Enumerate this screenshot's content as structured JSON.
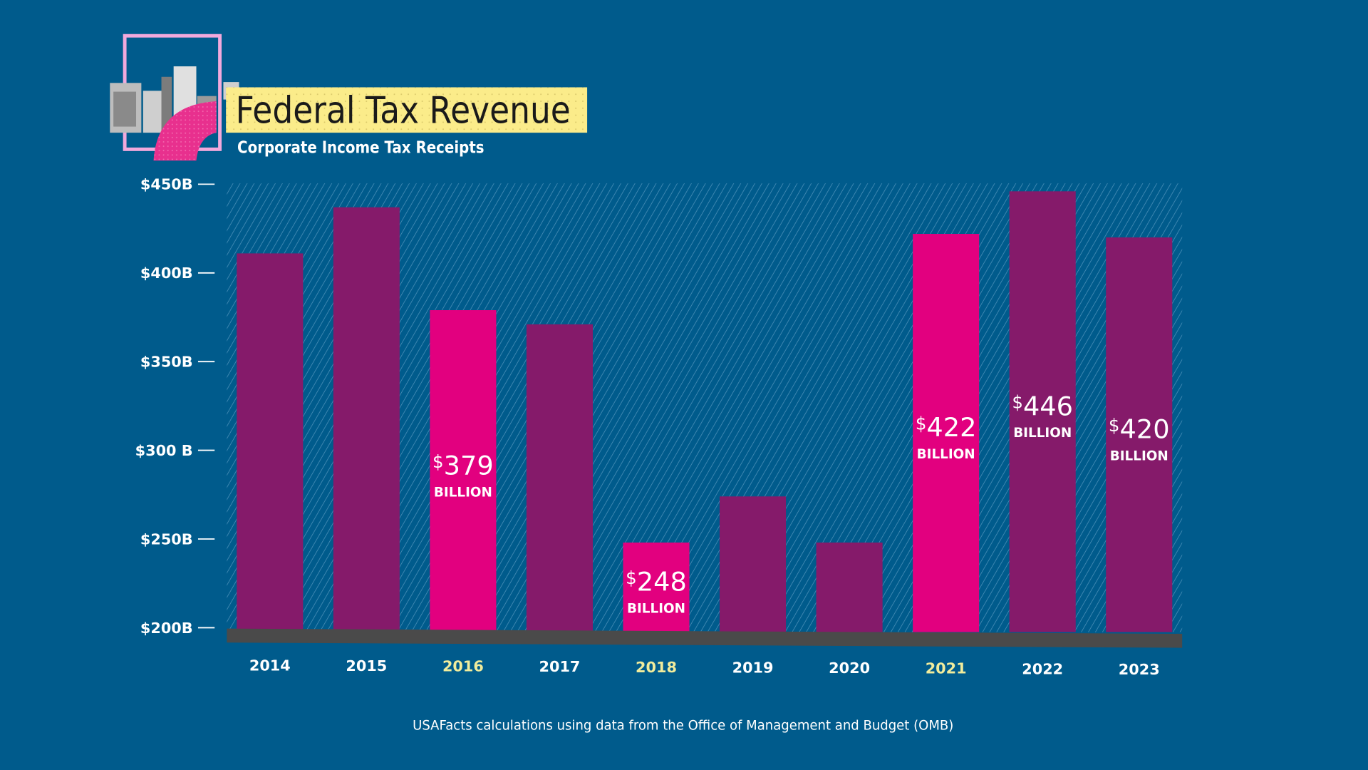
{
  "chart_data": {
    "type": "bar",
    "title": "Federal Tax Revenue",
    "subtitle": "Corporate Income Tax Receipts",
    "source": "USAFacts calculations using data from the Office of Management and Budget (OMB)",
    "categories": [
      "2014",
      "2015",
      "2016",
      "2017",
      "2018",
      "2019",
      "2020",
      "2021",
      "2022",
      "2023"
    ],
    "values": [
      411,
      437,
      379,
      371,
      248,
      274,
      248,
      422,
      446,
      420
    ],
    "highlighted": [
      false,
      false,
      true,
      false,
      true,
      false,
      false,
      true,
      false,
      false
    ],
    "data_labels": [
      null,
      null,
      {
        "amount": "379",
        "unit": "BILLION"
      },
      null,
      {
        "amount": "248",
        "unit": "BILLION"
      },
      null,
      null,
      {
        "amount": "422",
        "unit": "BILLION"
      },
      {
        "amount": "446",
        "unit": "BILLION"
      },
      {
        "amount": "420",
        "unit": "BILLION"
      }
    ],
    "currency_symbol": "$",
    "ylim": [
      200,
      450
    ],
    "yticks": [
      {
        "value": 450,
        "label": "$450B"
      },
      {
        "value": 400,
        "label": "$400B"
      },
      {
        "value": 350,
        "label": "$350B"
      },
      {
        "value": 300,
        "label": "$300 B"
      },
      {
        "value": 250,
        "label": "$250B"
      },
      {
        "value": 200,
        "label": "$200B"
      }
    ],
    "xlabel": "",
    "ylabel": "",
    "grid": false,
    "colors": {
      "background": "#005b8c",
      "bar": "#851a6a",
      "bar_highlight": "#e2007f",
      "title_box": "#fbec8a",
      "year_highlight": "#f1ec9c",
      "floor": "#4a4a4a"
    }
  }
}
